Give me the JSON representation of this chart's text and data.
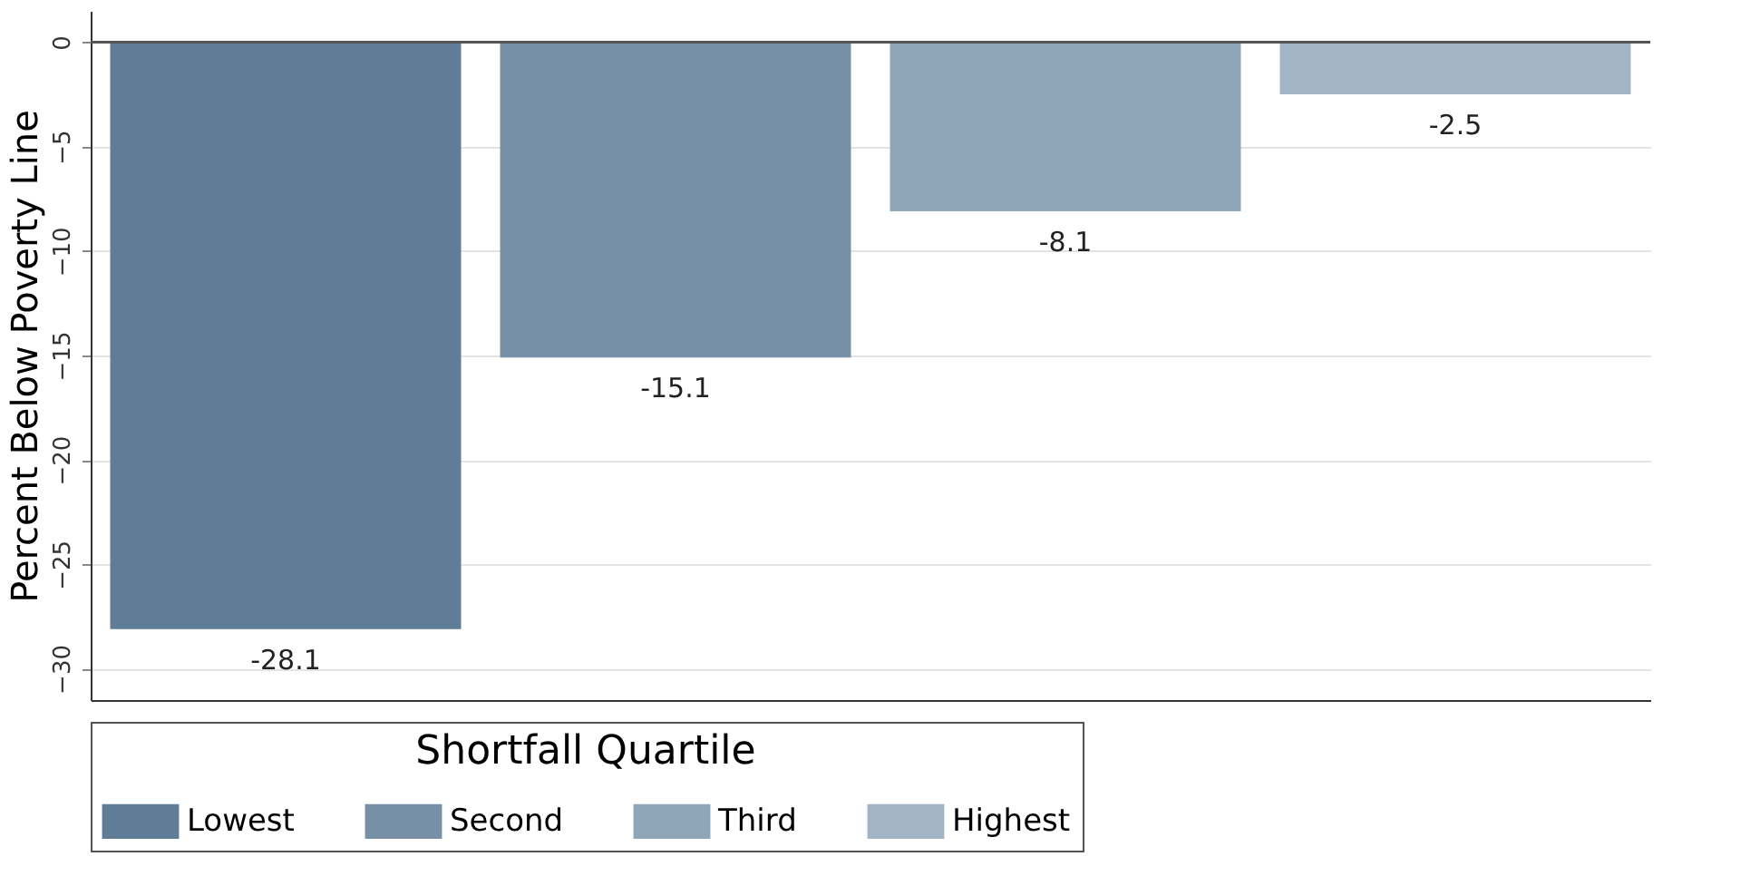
{
  "chart_data": {
    "type": "bar",
    "ylabel": "Percent Below Poverty Line",
    "legend_title": "Shortfall Quartile",
    "categories": [
      null,
      null,
      null,
      null
    ],
    "series": [
      {
        "name": "Lowest",
        "color": "#5f7d96",
        "values": [
          -28.1,
          null,
          null,
          null
        ]
      },
      {
        "name": "Second",
        "color": "#7890a7",
        "values": [
          null,
          -15.1,
          null,
          null
        ]
      },
      {
        "name": "Third",
        "color": "#8fa6b8",
        "values": [
          null,
          null,
          -8.1,
          null
        ]
      },
      {
        "name": "Highest",
        "color": "#a3b4c6",
        "values": [
          null,
          null,
          null,
          -2.5
        ]
      }
    ],
    "ylim": [
      -31.5,
      1.5
    ],
    "yticks": [
      -30,
      -25,
      -20,
      -15,
      -10,
      -5,
      0
    ],
    "ref_lines": [
      {
        "axis": "y",
        "value": 0,
        "color": "#555555"
      }
    ],
    "data_labels": true,
    "grid": "y",
    "legend": "bottom",
    "tick_labels": "y"
  }
}
